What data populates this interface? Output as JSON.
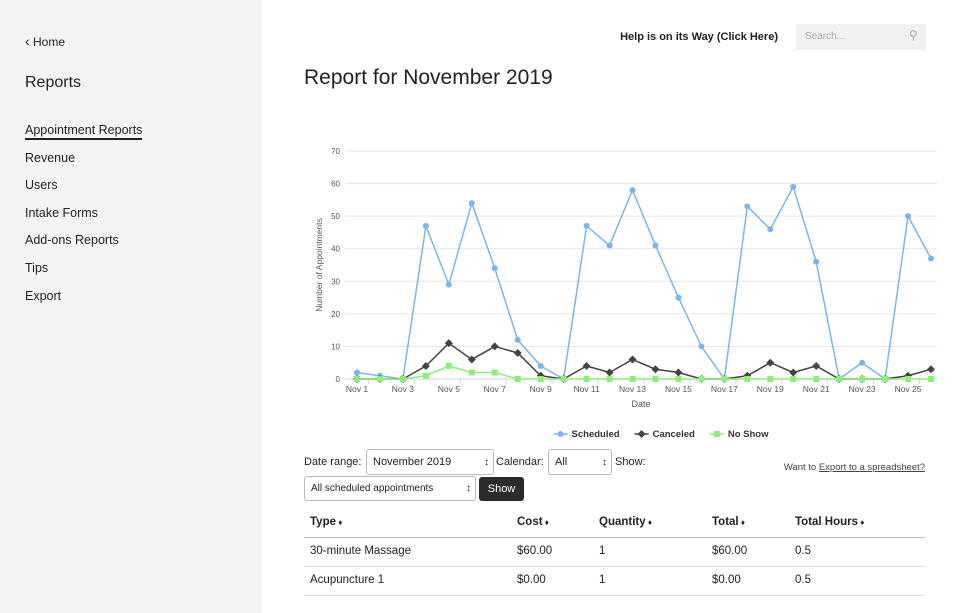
{
  "sidebar": {
    "back": "Home",
    "title": "Reports",
    "items": [
      "Appointment Reports",
      "Revenue",
      "Users",
      "Intake Forms",
      "Add-ons Reports",
      "Tips",
      "Export"
    ],
    "active": 0
  },
  "header": {
    "help": "Help is on its Way (Click Here)",
    "search": "Search..."
  },
  "page_title": "Report for November 2019",
  "chart_data": {
    "type": "line",
    "x_label": "Date",
    "y_label": "Number of Appointments",
    "categories": [
      "Nov 1",
      null,
      "Nov 3",
      null,
      "Nov 5",
      null,
      "Nov 7",
      null,
      "Nov 9",
      null,
      "Nov 11",
      null,
      "Nov 13",
      null,
      "Nov 15",
      null,
      "Nov 17",
      null,
      "Nov 19",
      null,
      "Nov 21",
      null,
      "Nov 23",
      null,
      "Nov 25",
      null
    ],
    "series": [
      {
        "name": "Scheduled",
        "color": "#7cb5ec",
        "marker": "circle",
        "values": [
          2,
          1,
          0,
          47,
          29,
          54,
          34,
          12,
          4,
          0,
          47,
          41,
          58,
          41,
          25,
          10,
          0,
          53,
          46,
          59,
          36,
          0,
          5,
          0,
          50,
          37
        ]
      },
      {
        "name": "Canceled",
        "color": "#434348",
        "marker": "diamond",
        "values": [
          0,
          0,
          0,
          4,
          11,
          6,
          10,
          8,
          1,
          0,
          4,
          2,
          6,
          3,
          2,
          0,
          0,
          1,
          5,
          2,
          4,
          0,
          0,
          0,
          1,
          3
        ]
      },
      {
        "name": "No Show",
        "color": "#90ed7d",
        "marker": "square",
        "values": [
          0,
          0,
          0,
          1,
          4,
          2,
          2,
          0,
          0,
          0,
          0,
          0,
          0,
          0,
          0,
          0,
          0,
          0,
          0,
          0,
          0,
          0,
          0,
          0,
          0,
          0
        ]
      }
    ],
    "ylim": [
      0,
      70
    ],
    "yticks": [
      0,
      10,
      20,
      30,
      40,
      50,
      60,
      70
    ],
    "grid": true,
    "legend": "bottom"
  },
  "filters": {
    "date_range_label": "Date range:",
    "date_range": "November 2019",
    "calendar_label": "Calendar:",
    "calendar": "All",
    "show_label": "Show:",
    "show": "All scheduled appointments",
    "button": "Show",
    "export_prefix": "Want to",
    "export_link": "Export to a spreadsheet?"
  },
  "table": {
    "columns": [
      "Type",
      "Cost",
      "Quantity",
      "Total",
      "Total Hours"
    ],
    "rows": [
      [
        "30-minute Massage",
        "$60.00",
        "1",
        "$60.00",
        "0.5"
      ],
      [
        "Acupuncture 1",
        "$0.00",
        "1",
        "$0.00",
        "0.5"
      ]
    ]
  }
}
